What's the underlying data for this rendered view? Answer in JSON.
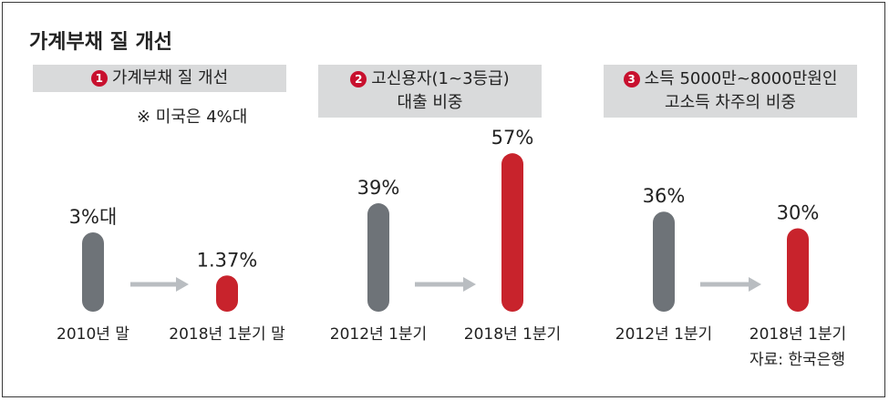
{
  "title": "가계부채 질 개선",
  "source": "자료: 한국은행",
  "colors": {
    "before": "#6e7378",
    "after": "#c8232c",
    "arrow": "#b9bdc1",
    "header_bg": "#d9dadb",
    "badge": "#c8102e"
  },
  "chart_data": [
    {
      "type": "bar",
      "number": "1",
      "title_lines": [
        "가계부채 질 개선"
      ],
      "note": "※ 미국은 4%대",
      "categories": [
        "2010년 말",
        "2018년 1분기 말"
      ],
      "values": [
        3,
        1.37
      ],
      "value_labels": [
        "3%대",
        "1.37%"
      ],
      "unit": "%"
    },
    {
      "type": "bar",
      "number": "2",
      "title_lines": [
        "고신용자(1~3등급)",
        "대출 비중"
      ],
      "categories": [
        "2012년 1분기",
        "2018년 1분기"
      ],
      "values": [
        39,
        57
      ],
      "value_labels": [
        "39%",
        "57%"
      ],
      "unit": "%"
    },
    {
      "type": "bar",
      "number": "3",
      "title_lines": [
        "소득 5000만~8000만원인",
        "고소득 차주의 비중"
      ],
      "categories": [
        "2012년 1분기",
        "2018년 1분기"
      ],
      "values": [
        36,
        30
      ],
      "value_labels": [
        "36%",
        "30%"
      ],
      "unit": "%"
    }
  ]
}
